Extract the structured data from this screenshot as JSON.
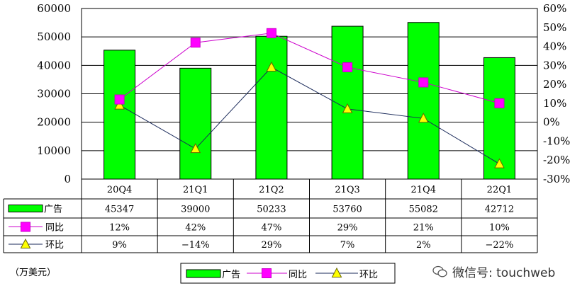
{
  "chart_data": {
    "type": "bar",
    "categories": [
      "20Q4",
      "21Q1",
      "21Q2",
      "21Q3",
      "21Q4",
      "22Q1"
    ],
    "series": [
      {
        "name": "广告",
        "type": "bar",
        "axis": "left",
        "values": [
          45347,
          39000,
          50233,
          53760,
          55082,
          42712
        ],
        "labels": [
          "45347",
          "39000",
          "50233",
          "53760",
          "55082",
          "42712"
        ]
      },
      {
        "name": "同比",
        "type": "line",
        "axis": "right",
        "values": [
          12,
          42,
          47,
          29,
          21,
          10
        ],
        "labels": [
          "12%",
          "42%",
          "47%",
          "29%",
          "21%",
          "10%"
        ]
      },
      {
        "name": "环比",
        "type": "line",
        "axis": "right",
        "values": [
          9,
          -14,
          29,
          7,
          2,
          -22
        ],
        "labels": [
          "9%",
          "−14%",
          "29%",
          "7%",
          "2%",
          "−22%"
        ]
      }
    ],
    "left_axis": {
      "ylim": [
        0,
        60000
      ],
      "ticks": [
        "0",
        "10000",
        "20000",
        "30000",
        "40000",
        "50000",
        "60000"
      ]
    },
    "right_axis": {
      "ylim": [
        -30,
        60
      ],
      "ticks": [
        "-30%",
        "-20%",
        "-10%",
        "0%",
        "10%",
        "20%",
        "30%",
        "40%",
        "50%",
        "60%"
      ]
    },
    "grid": true,
    "legend_position": "bottom",
    "unit_label": "（万美元）",
    "colors": {
      "bar": "#00ff00",
      "bar_edge": "#000000",
      "yoy": "#cc00cc",
      "yoy_marker": "#ff00ff",
      "qoq": "#1a2a5a",
      "qoq_marker": "#ffff00"
    }
  },
  "legend": {
    "bar": "广告",
    "yoy": "同比",
    "qoq": "环比"
  },
  "watermark": {
    "text": "微信号: touchweb",
    "icon": "wechat-icon"
  }
}
